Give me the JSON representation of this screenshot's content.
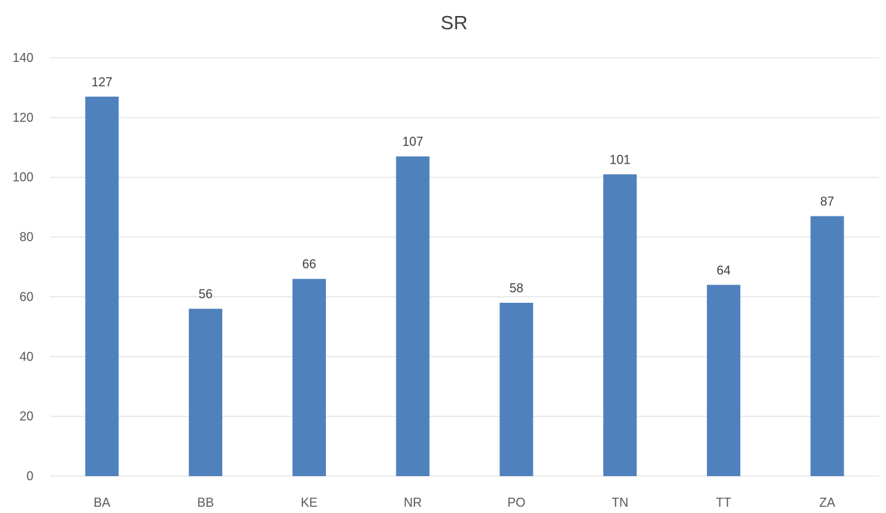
{
  "chart_data": {
    "type": "bar",
    "title": "SR",
    "categories": [
      "BA",
      "BB",
      "KE",
      "NR",
      "PO",
      "TN",
      "TT",
      "ZA"
    ],
    "values": [
      127,
      56,
      66,
      107,
      58,
      101,
      64,
      87
    ],
    "ylim": [
      0,
      140
    ],
    "yticks": [
      "0",
      "20",
      "40",
      "60",
      "80",
      "100",
      "120",
      "140"
    ],
    "grid": true,
    "legend": "none",
    "data_labels": true,
    "bar_color": "#4F81BD",
    "grid_color": "#D9D9D9"
  }
}
